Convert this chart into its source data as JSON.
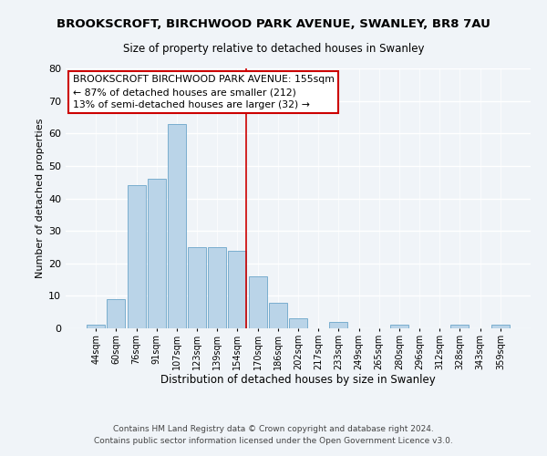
{
  "title": "BROOKSCROFT, BIRCHWOOD PARK AVENUE, SWANLEY, BR8 7AU",
  "subtitle": "Size of property relative to detached houses in Swanley",
  "xlabel": "Distribution of detached houses by size in Swanley",
  "ylabel": "Number of detached properties",
  "bar_color": "#bad4e8",
  "bar_edge_color": "#7aaecf",
  "background_color": "#f0f4f8",
  "bins": [
    "44sqm",
    "60sqm",
    "76sqm",
    "91sqm",
    "107sqm",
    "123sqm",
    "139sqm",
    "154sqm",
    "170sqm",
    "186sqm",
    "202sqm",
    "217sqm",
    "233sqm",
    "249sqm",
    "265sqm",
    "280sqm",
    "296sqm",
    "312sqm",
    "328sqm",
    "343sqm",
    "359sqm"
  ],
  "values": [
    1,
    9,
    44,
    46,
    63,
    25,
    25,
    24,
    16,
    8,
    3,
    0,
    2,
    0,
    0,
    1,
    0,
    0,
    1,
    0,
    1
  ],
  "ylim": [
    0,
    80
  ],
  "property_line_color": "#cc0000",
  "annotation_title": "BROOKSCROFT BIRCHWOOD PARK AVENUE: 155sqm",
  "annotation_line1": "← 87% of detached houses are smaller (212)",
  "annotation_line2": "13% of semi-detached houses are larger (32) →",
  "annotation_box_color": "#ffffff",
  "annotation_box_edge_color": "#cc0000",
  "footnote1": "Contains HM Land Registry data © Crown copyright and database right 2024.",
  "footnote2": "Contains public sector information licensed under the Open Government Licence v3.0."
}
